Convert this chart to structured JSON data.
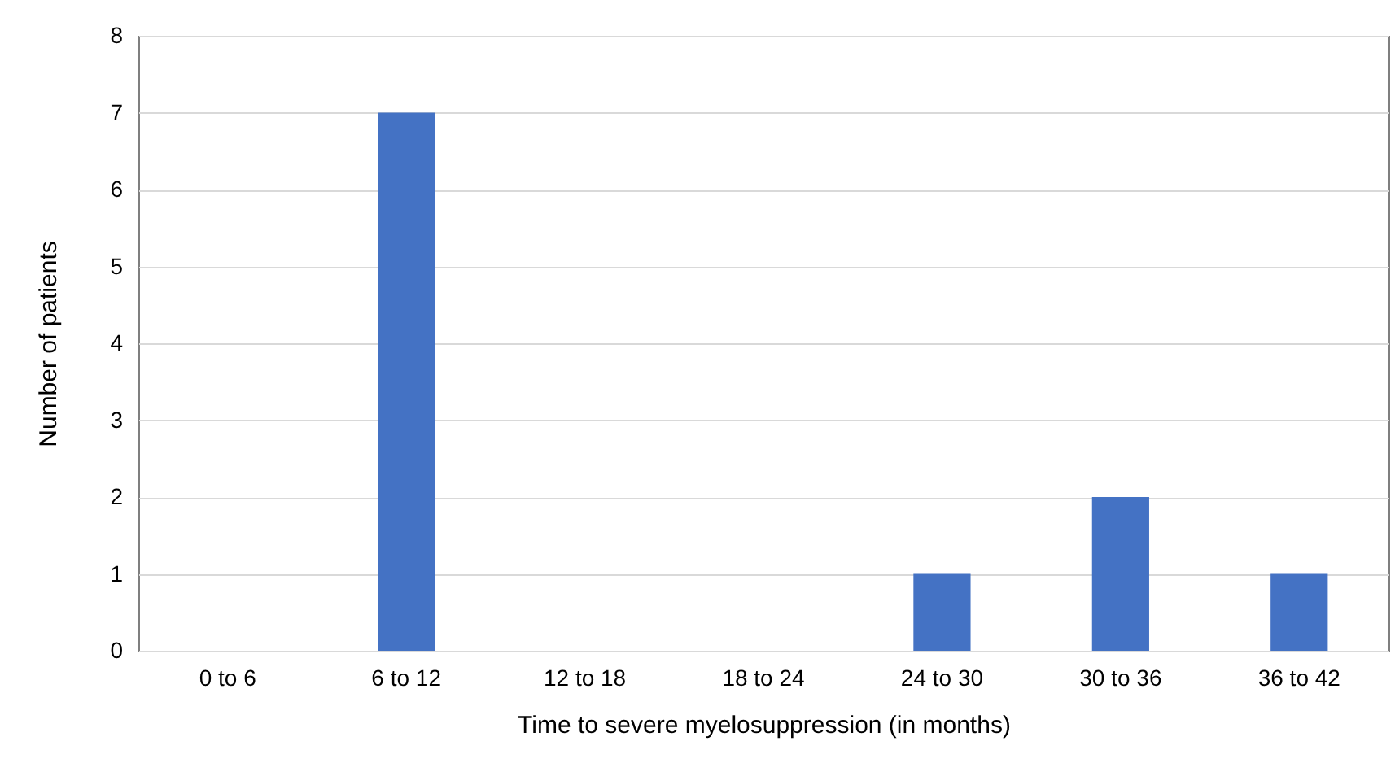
{
  "chart_data": {
    "type": "bar",
    "xlabel": "Time to severe myelosuppression (in months)",
    "ylabel": "Number of patients",
    "categories": [
      "0 to 6",
      "6 to 12",
      "12 to 18",
      "18 to 24",
      "24 to 30",
      "30 to 36",
      "36 to 42"
    ],
    "values": [
      0,
      7,
      0,
      0,
      1,
      2,
      1
    ],
    "color": "#4472c4",
    "ylim": [
      0,
      8
    ],
    "yticks": [
      0,
      1,
      2,
      3,
      4,
      5,
      6,
      7,
      8
    ],
    "grid": "y"
  }
}
